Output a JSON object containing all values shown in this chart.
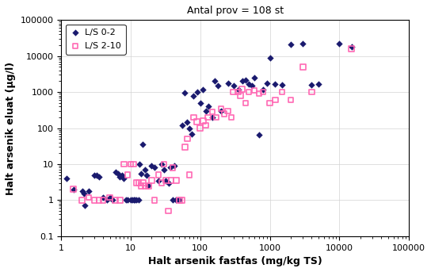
{
  "title": "Antal prov = 108 st",
  "xlabel": "Halt arsenik fastfas (mg/kg TS)",
  "ylabel": "Halt arsenik eluat (µg/l)",
  "xlim": [
    1,
    100000
  ],
  "ylim": [
    0.1,
    100000
  ],
  "series1_label": "L/S 0-2",
  "series2_label": "L/S 2-10",
  "series1_color": "#1a1a6e",
  "series2_color": "#ff69b4",
  "series1_x": [
    1.2,
    1.5,
    2.0,
    2.1,
    2.2,
    2.5,
    3.0,
    3.2,
    3.5,
    4.0,
    4.5,
    5.0,
    5.5,
    6.0,
    6.5,
    7.0,
    7.5,
    8.0,
    8.5,
    9.0,
    10.0,
    10.5,
    11.0,
    11.5,
    12.0,
    13.0,
    13.5,
    14.0,
    15.0,
    16.0,
    17.0,
    18.0,
    20.0,
    22.0,
    25.0,
    28.0,
    30.0,
    32.0,
    35.0,
    37.0,
    40.0,
    42.0,
    45.0,
    48.0,
    50.0,
    55.0,
    60.0,
    65.0,
    70.0,
    75.0,
    80.0,
    90.0,
    100.0,
    110.0,
    120.0,
    130.0,
    150.0,
    160.0,
    180.0,
    200.0,
    250.0,
    300.0,
    350.0,
    400.0,
    450.0,
    500.0,
    550.0,
    600.0,
    700.0,
    800.0,
    900.0,
    1000.0,
    1200.0,
    1500.0,
    2000.0,
    3000.0,
    4000.0,
    5000.0,
    10000.0,
    15000.0
  ],
  "series1_y": [
    4.0,
    2.0,
    1.8,
    1.5,
    0.7,
    1.8,
    5.0,
    5.0,
    4.5,
    1.2,
    1.0,
    1.2,
    1.0,
    6.0,
    5.5,
    4.5,
    5.0,
    4.0,
    1.0,
    1.0,
    1.0,
    1.0,
    1.0,
    1.0,
    1.0,
    1.0,
    10.0,
    5.5,
    35.0,
    7.0,
    5.0,
    2.5,
    9.0,
    8.0,
    3.5,
    10.0,
    7.0,
    3.5,
    3.0,
    8.0,
    1.0,
    9.0,
    1.0,
    1.0,
    1.0,
    120.0,
    950.0,
    150.0,
    100.0,
    70.0,
    800.0,
    1000.0,
    500.0,
    1200.0,
    300.0,
    400.0,
    200.0,
    2000.0,
    1500.0,
    300.0,
    1800.0,
    1500.0,
    1200.0,
    2000.0,
    2200.0,
    1700.0,
    1500.0,
    2500.0,
    65.0,
    1200.0,
    1800.0,
    8700.0,
    1700.0,
    1600.0,
    21000.0,
    22000.0,
    1600.0,
    1700.0,
    22000.0,
    18000.0
  ],
  "series2_x": [
    1.5,
    2.0,
    2.5,
    3.0,
    3.5,
    4.0,
    5.0,
    6.0,
    7.0,
    8.0,
    9.0,
    10.0,
    11.0,
    12.0,
    13.0,
    14.0,
    15.0,
    16.0,
    18.0,
    20.0,
    22.0,
    25.0,
    28.0,
    30.0,
    32.0,
    35.0,
    38.0,
    40.0,
    45.0,
    50.0,
    55.0,
    60.0,
    65.0,
    70.0,
    80.0,
    90.0,
    100.0,
    110.0,
    120.0,
    130.0,
    150.0,
    170.0,
    200.0,
    220.0,
    250.0,
    280.0,
    300.0,
    350.0,
    380.0,
    400.0,
    450.0,
    500.0,
    600.0,
    700.0,
    800.0,
    1000.0,
    1200.0,
    1500.0,
    2000.0,
    3000.0,
    4000.0,
    15000.0
  ],
  "series2_y": [
    2.0,
    1.0,
    1.2,
    1.0,
    1.0,
    1.0,
    1.2,
    1.0,
    1.0,
    10.0,
    5.0,
    10.0,
    10.0,
    3.0,
    3.0,
    2.5,
    3.0,
    2.5,
    2.5,
    3.5,
    1.0,
    5.0,
    3.0,
    10.0,
    3.5,
    0.5,
    3.5,
    8.0,
    3.5,
    1.0,
    1.0,
    30.0,
    50.0,
    5.0,
    200.0,
    150.0,
    100.0,
    160.0,
    120.0,
    200.0,
    280.0,
    200.0,
    350.0,
    250.0,
    300.0,
    200.0,
    1000.0,
    1000.0,
    800.0,
    1200.0,
    500.0,
    1000.0,
    1100.0,
    900.0,
    1000.0,
    500.0,
    600.0,
    1000.0,
    600.0,
    5000.0,
    1000.0,
    16000.0
  ]
}
